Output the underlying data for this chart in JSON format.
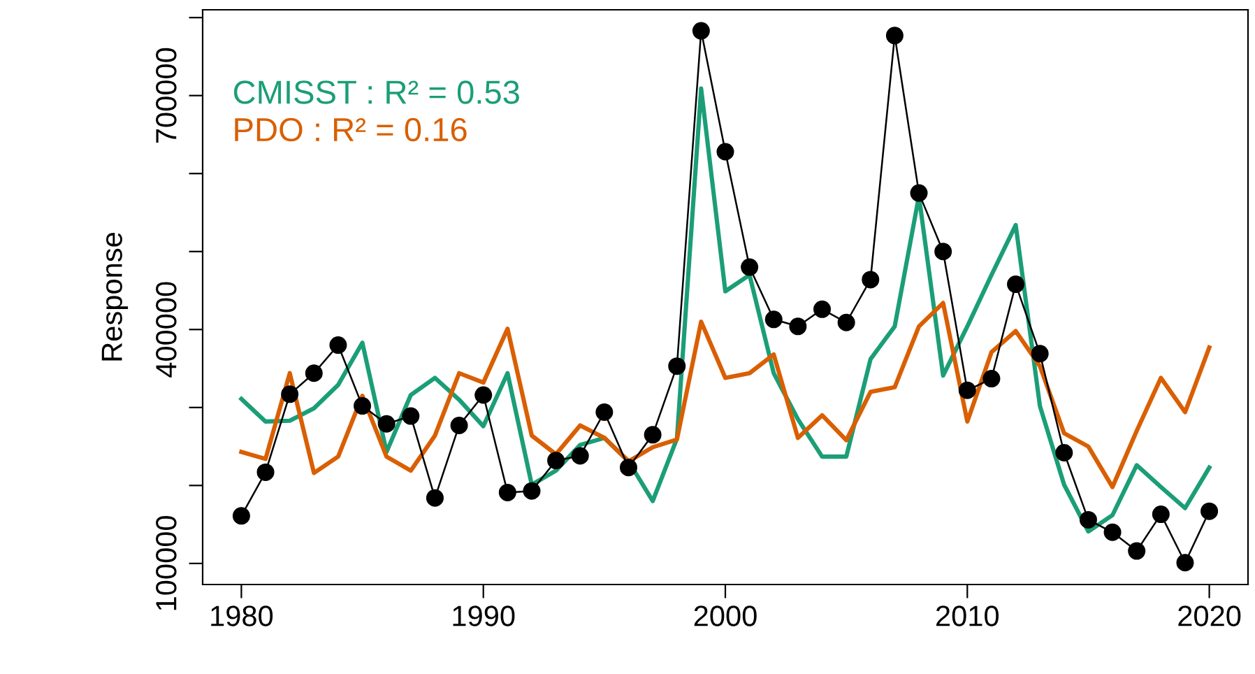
{
  "chart_data": {
    "type": "line",
    "ylabel": "Response",
    "x": [
      1980,
      1981,
      1982,
      1983,
      1984,
      1985,
      1986,
      1987,
      1988,
      1989,
      1990,
      1991,
      1992,
      1993,
      1994,
      1995,
      1996,
      1997,
      1998,
      1999,
      2000,
      2001,
      2002,
      2003,
      2004,
      2005,
      2006,
      2007,
      2008,
      2009,
      2010,
      2011,
      2012,
      2013,
      2014,
      2015,
      2016,
      2017,
      2018,
      2019,
      2020
    ],
    "series": [
      {
        "color": "#000000",
        "marker": "circle",
        "line_style": "solid",
        "values": [
          161000,
          217000,
          317000,
          344000,
          380000,
          302000,
          279000,
          289000,
          184000,
          277000,
          316000,
          191000,
          193000,
          232000,
          238000,
          294000,
          223000,
          265000,
          353000,
          783000,
          628000,
          480000,
          413000,
          404000,
          426000,
          409000,
          464000,
          777000,
          575000,
          500000,
          322000,
          337000,
          458000,
          369000,
          242000,
          156000,
          140000,
          116000,
          163000,
          101000,
          167000
        ]
      },
      {
        "name": "CMISST : R² = 0.53",
        "color": "#1b9e77",
        "marker": "none",
        "line_style": "solid",
        "values": [
          311000,
          282000,
          283000,
          299000,
          329000,
          383000,
          243000,
          316000,
          338000,
          310000,
          276000,
          344000,
          201000,
          219000,
          252000,
          261000,
          231000,
          180000,
          260000,
          709000,
          449000,
          470000,
          344000,
          285000,
          237000,
          237000,
          362000,
          404000,
          571000,
          341000,
          404000,
          470000,
          534000,
          302000,
          201000,
          141000,
          162000,
          226000,
          198000,
          171000,
          223000
        ]
      },
      {
        "name": "PDO : R² = 0.16",
        "color": "#d95f02",
        "marker": "none",
        "line_style": "solid",
        "values": [
          243000,
          234000,
          344000,
          216000,
          237000,
          315000,
          237000,
          219000,
          264000,
          344000,
          332000,
          401000,
          264000,
          240000,
          277000,
          261000,
          231000,
          249000,
          259000,
          410000,
          338000,
          344000,
          368000,
          261000,
          290000,
          258000,
          320000,
          326000,
          404000,
          434000,
          282000,
          371000,
          398000,
          353000,
          267000,
          250000,
          198000,
          270000,
          338000,
          294000,
          377000
        ]
      }
    ],
    "xlim": [
      1978.4,
      2021.6
    ],
    "xticks": [
      1980,
      1990,
      2000,
      2010,
      2020
    ],
    "ylim": [
      73000,
      810000
    ],
    "yticks": [
      100000,
      {
        "value": 200000,
        "label": null
      },
      {
        "value": 300000,
        "label": null
      },
      400000,
      {
        "value": 500000,
        "label": null
      },
      {
        "value": 600000,
        "label": null
      },
      700000,
      {
        "value": 800000,
        "label": null
      }
    ],
    "grid": false,
    "legend": "top left"
  }
}
